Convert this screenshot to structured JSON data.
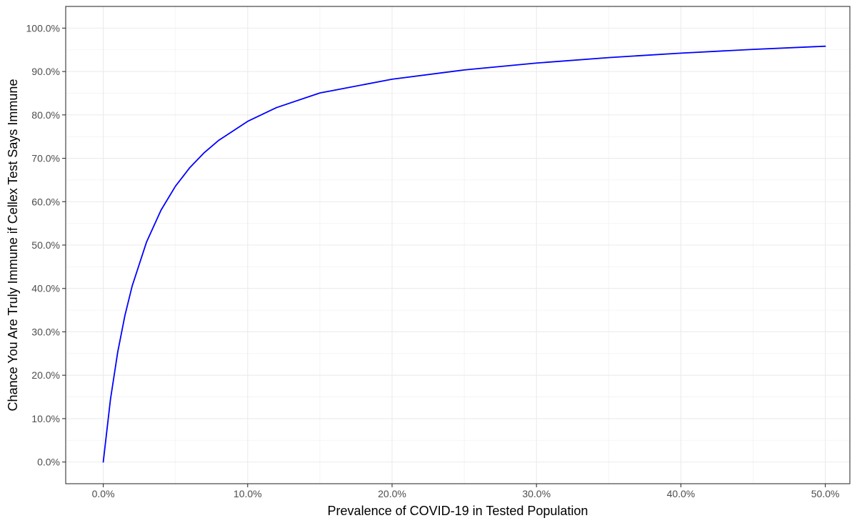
{
  "chart_data": {
    "type": "line",
    "title": "",
    "xlabel": "Prevalence of COVID-19 in Tested Population",
    "ylabel": "Chance You Are Truly Immune if Cellex Test Says Immune",
    "xlim": [
      -0.026,
      0.517
    ],
    "ylim": [
      -0.05,
      1.05
    ],
    "x_ticks": [
      0.0,
      0.1,
      0.2,
      0.3,
      0.4,
      0.5
    ],
    "x_tick_labels": [
      "0.0%",
      "10.0%",
      "20.0%",
      "30.0%",
      "40.0%",
      "50.0%"
    ],
    "y_ticks": [
      0.0,
      0.1,
      0.2,
      0.3,
      0.4,
      0.5,
      0.6,
      0.7,
      0.8,
      0.9,
      1.0
    ],
    "y_tick_labels": [
      "0.0%",
      "10.0%",
      "20.0%",
      "30.0%",
      "40.0%",
      "50.0%",
      "60.0%",
      "70.0%",
      "80.0%",
      "90.0%",
      "100.0%"
    ],
    "grid": true,
    "legend": "none",
    "series": [
      {
        "color": "#0000ff",
        "x": [
          0.0,
          0.005,
          0.01,
          0.015,
          0.02,
          0.03,
          0.04,
          0.05,
          0.06,
          0.07,
          0.08,
          0.1,
          0.12,
          0.15,
          0.2,
          0.25,
          0.3,
          0.35,
          0.4,
          0.45,
          0.5
        ],
        "y": [
          0.0,
          0.1445,
          0.2531,
          0.3377,
          0.4054,
          0.5073,
          0.5805,
          0.6357,
          0.6787,
          0.7132,
          0.7415,
          0.7851,
          0.8169,
          0.8505,
          0.8822,
          0.9036,
          0.9195,
          0.9321,
          0.9424,
          0.951,
          0.9583
        ]
      }
    ]
  }
}
